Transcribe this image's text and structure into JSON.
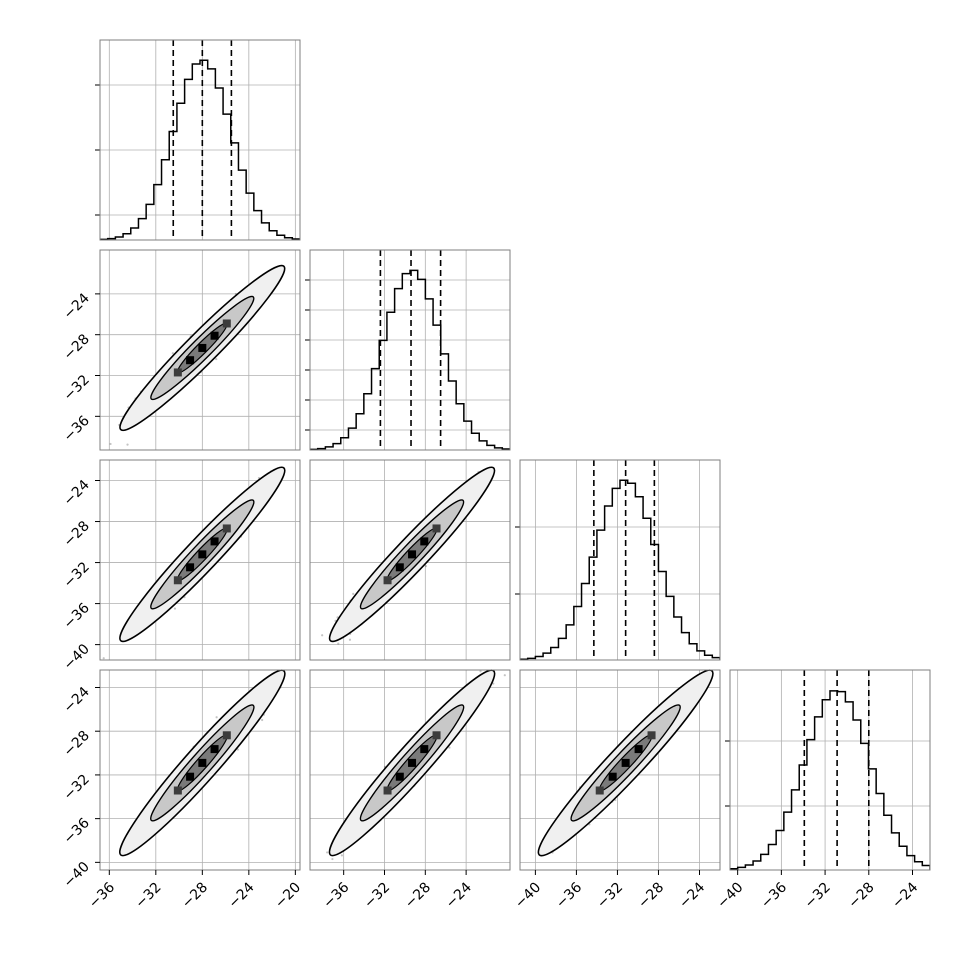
{
  "chart_data": {
    "type": "corner",
    "grid": true,
    "colors": {
      "line": "#000000",
      "grid": "#b0b0b0",
      "scatter": "#555555"
    },
    "parameters": [
      {
        "mean": -28.0,
        "sd": 2.5,
        "q16": -30.5,
        "q50": -28.0,
        "q84": -25.5,
        "range": [
          -36.8,
          -19.6
        ]
      },
      {
        "mean": -29.3,
        "sd": 2.85,
        "q16": -32.4,
        "q50": -29.4,
        "q84": -26.5,
        "range": [
          -39.3,
          -19.7
        ]
      },
      {
        "mean": -31.2,
        "sd": 3.0,
        "q16": -34.3,
        "q50": -31.2,
        "q84": -28.4,
        "range": [
          -41.5,
          -22.0
        ]
      },
      {
        "mean": -30.9,
        "sd": 3.0,
        "q16": -33.9,
        "q50": -30.9,
        "q84": -28.0,
        "range": [
          -40.7,
          -22.4
        ]
      }
    ],
    "diagonal_hist_yticks": [
      [
        0.125,
        0.45,
        0.775
      ],
      [
        0.1,
        0.25,
        0.4,
        0.55,
        0.7,
        0.85
      ],
      [
        0.33,
        0.665
      ],
      [
        0.32,
        0.645
      ]
    ],
    "panel_ticks": {
      "row_y_ticks": [
        [],
        [
          -36,
          -32,
          -28,
          -24
        ],
        [
          -40,
          -36,
          -32,
          -28,
          -24
        ],
        [
          -40,
          -36,
          -32,
          -28,
          -24
        ]
      ],
      "col_x_ticks": [
        [
          -36,
          -32,
          -28,
          -24,
          -20
        ],
        [
          -36,
          -32,
          -28,
          -24
        ],
        [
          -40,
          -36,
          -32,
          -28,
          -24
        ],
        [
          -40,
          -36,
          -32,
          -28,
          -24
        ]
      ]
    },
    "correlation": 0.97
  }
}
